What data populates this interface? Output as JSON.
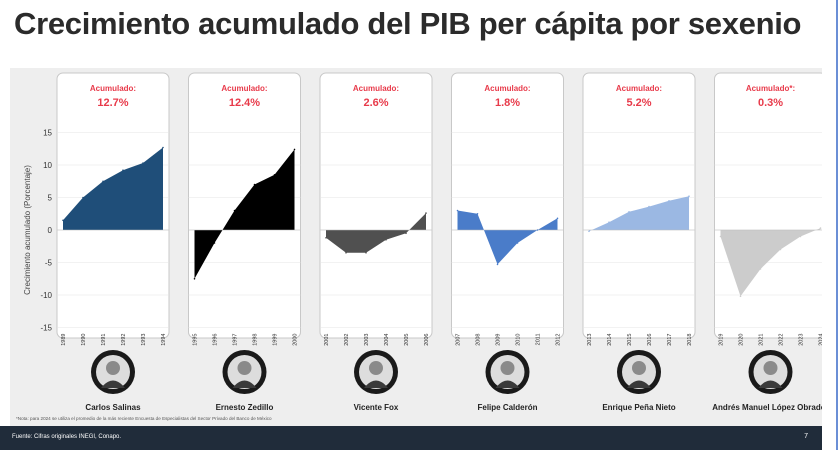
{
  "title": "Crecimiento acumulado del PIB per cápita por sexenio",
  "note": "*Nota: para 2024 se utiliza el promedio de la más reciente Encuesta de Especialistas del Sector Privado del Banco de México",
  "source": "Fuente: Cifras originales INEGI, Conapo.",
  "page_number": "7",
  "colors": {
    "highlight": "#e83a4a",
    "panel_border": "#c8c8c8"
  },
  "chart_data": {
    "type": "area",
    "ylabel": "Crecimiento acumulado (Porcentaje)",
    "ylim": [
      -15,
      15
    ],
    "yticks": [
      15,
      10,
      5,
      0,
      -5,
      -10,
      -15
    ],
    "panels": [
      {
        "name": "Carlos Salinas",
        "accum_label": "Acumulado:",
        "accum_value": "12.7%",
        "color": "#1f4e79",
        "x": [
          "1989",
          "1990",
          "1991",
          "1992",
          "1993",
          "1994"
        ],
        "values": [
          1.5,
          5.0,
          7.5,
          9.2,
          10.3,
          12.7
        ]
      },
      {
        "name": "Ernesto Zedillo",
        "accum_label": "Acumulado:",
        "accum_value": "12.4%",
        "color": "#000000",
        "x": [
          "1995",
          "1996",
          "1997",
          "1998",
          "1999",
          "2000"
        ],
        "values": [
          -7.5,
          -2.0,
          3.0,
          7.0,
          8.5,
          12.4
        ]
      },
      {
        "name": "Vicente Fox",
        "accum_label": "Acumulado:",
        "accum_value": "2.6%",
        "color": "#505050",
        "x": [
          "2001",
          "2002",
          "2003",
          "2004",
          "2005",
          "2006"
        ],
        "values": [
          -1.2,
          -3.5,
          -3.5,
          -1.5,
          -0.5,
          2.6
        ]
      },
      {
        "name": "Felipe Calderón",
        "accum_label": "Acumulado:",
        "accum_value": "1.8%",
        "color": "#4a7cc9",
        "x": [
          "2007",
          "2008",
          "2009",
          "2010",
          "2011",
          "2012"
        ],
        "values": [
          3.0,
          2.5,
          -5.3,
          -2.0,
          0.0,
          1.8
        ]
      },
      {
        "name": "Enrique Peña Nieto",
        "accum_label": "Acumulado:",
        "accum_value": "5.2%",
        "color": "#9bb8e3",
        "x": [
          "2013",
          "2014",
          "2015",
          "2016",
          "2017",
          "2018"
        ],
        "values": [
          -0.2,
          1.2,
          2.8,
          3.6,
          4.5,
          5.2
        ]
      },
      {
        "name": "Andrés Manuel López Obrador",
        "accum_label": "Acumulado*:",
        "accum_value": "0.3%",
        "color": "#cccccc",
        "x": [
          "2019",
          "2020",
          "2021",
          "2022",
          "2023",
          "2024"
        ],
        "values": [
          -1.0,
          -10.2,
          -6.0,
          -3.0,
          -1.0,
          0.3
        ]
      }
    ]
  }
}
